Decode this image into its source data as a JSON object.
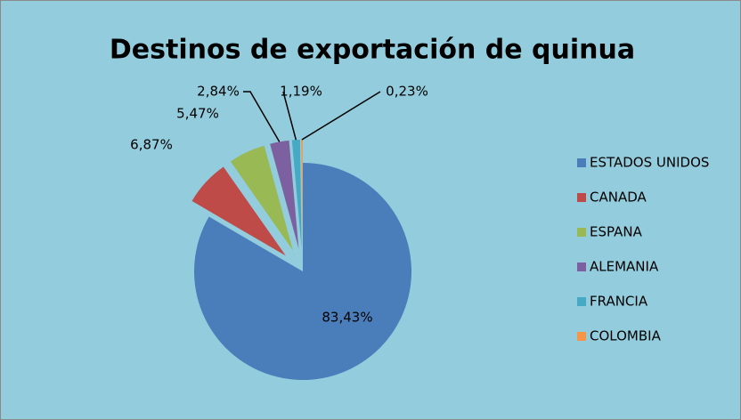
{
  "chart_data": {
    "type": "pie",
    "title": "Destinos de exportación de quinua",
    "categories": [
      "ESTADOS UNIDOS",
      "CANADA",
      "ESPANA",
      "ALEMANIA",
      "FRANCIA",
      "COLOMBIA"
    ],
    "values": [
      83.43,
      6.87,
      5.47,
      2.84,
      1.19,
      0.23
    ],
    "value_labels": [
      "83,43%",
      "6,87%",
      "5,47%",
      "2,84%",
      "1,19%",
      "0,23%"
    ],
    "colors": [
      "#4A7EBB",
      "#BE4B48",
      "#98B954",
      "#7D60A0",
      "#46AAC5",
      "#F79646"
    ],
    "legend": "right"
  }
}
